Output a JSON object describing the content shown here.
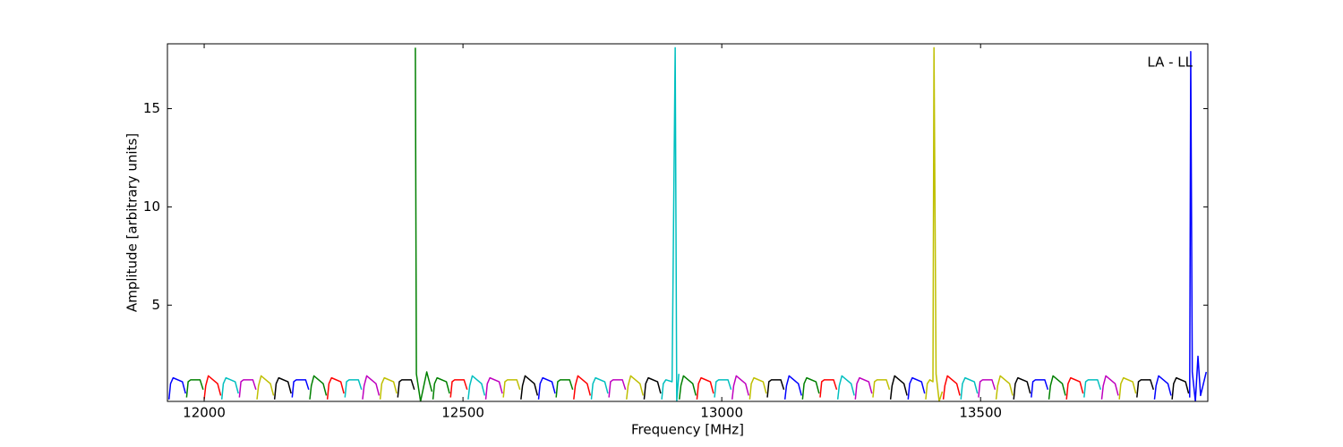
{
  "chart_data": {
    "type": "line",
    "annotation": "LA - LL",
    "x_label": "Frequency [MHz]",
    "y_label": "Amplitude [arbitrary units]",
    "xlim": [
      11929,
      13939
    ],
    "ylim": [
      0.1,
      18.3
    ],
    "xticks": [
      12000,
      12500,
      13000,
      13500
    ],
    "yticks": [
      5,
      10,
      15
    ],
    "series": [
      {
        "color": "#0000ff",
        "x": [
          11932,
          11935,
          11940,
          11958,
          11964
        ],
        "values": [
          0.2,
          1.0,
          1.3,
          1.1,
          0.5
        ]
      },
      {
        "color": "#008000",
        "x": [
          11966,
          11969,
          11974,
          11992,
          11998
        ],
        "values": [
          0.3,
          1.1,
          1.2,
          1.2,
          0.7
        ]
      },
      {
        "color": "#ff0000",
        "x": [
          12000,
          12003,
          12008,
          12026,
          12032
        ],
        "values": [
          0.2,
          0.9,
          1.4,
          1.0,
          0.4
        ]
      },
      {
        "color": "#00bfbf",
        "x": [
          12034,
          12037,
          12042,
          12060,
          12066
        ],
        "values": [
          0.2,
          1.0,
          1.3,
          1.1,
          0.5
        ]
      },
      {
        "color": "#bf00bf",
        "x": [
          12068,
          12071,
          12076,
          12094,
          12100
        ],
        "values": [
          0.3,
          1.1,
          1.2,
          1.2,
          0.7
        ]
      },
      {
        "color": "#bfbf00",
        "x": [
          12102,
          12105,
          12110,
          12128,
          12134
        ],
        "values": [
          0.2,
          0.9,
          1.4,
          1.0,
          0.4
        ]
      },
      {
        "color": "#000000",
        "x": [
          12136,
          12139,
          12144,
          12162,
          12168
        ],
        "values": [
          0.2,
          1.0,
          1.3,
          1.1,
          0.5
        ]
      },
      {
        "color": "#0000ff",
        "x": [
          12170,
          12173,
          12178,
          12196,
          12202
        ],
        "values": [
          0.3,
          1.1,
          1.2,
          1.2,
          0.7
        ]
      },
      {
        "color": "#008000",
        "x": [
          12204,
          12207,
          12212,
          12230,
          12236
        ],
        "values": [
          0.2,
          0.9,
          1.4,
          1.0,
          0.4
        ]
      },
      {
        "color": "#ff0000",
        "x": [
          12238,
          12241,
          12246,
          12264,
          12270
        ],
        "values": [
          0.2,
          1.0,
          1.3,
          1.1,
          0.5
        ]
      },
      {
        "color": "#00bfbf",
        "x": [
          12272,
          12275,
          12280,
          12298,
          12304
        ],
        "values": [
          0.3,
          1.1,
          1.2,
          1.2,
          0.7
        ]
      },
      {
        "color": "#bf00bf",
        "x": [
          12306,
          12309,
          12314,
          12332,
          12338
        ],
        "values": [
          0.2,
          0.9,
          1.4,
          1.0,
          0.4
        ]
      },
      {
        "color": "#bfbf00",
        "x": [
          12340,
          12343,
          12348,
          12366,
          12372
        ],
        "values": [
          0.2,
          1.0,
          1.3,
          1.1,
          0.5
        ]
      },
      {
        "color": "#000000",
        "x": [
          12374,
          12377,
          12382,
          12400,
          12406
        ],
        "values": [
          0.3,
          1.1,
          1.2,
          1.2,
          0.7
        ]
      },
      {
        "color": "#008000",
        "x": [
          12408,
          12410,
          12418,
          12430,
          12440
        ],
        "values": [
          18.1,
          1.5,
          0.1,
          1.6,
          0.6
        ]
      },
      {
        "color": "#008000",
        "x": [
          12442,
          12445,
          12450,
          12468,
          12474
        ],
        "values": [
          0.2,
          1.0,
          1.3,
          1.1,
          0.5
        ]
      },
      {
        "color": "#ff0000",
        "x": [
          12476,
          12479,
          12484,
          12502,
          12508
        ],
        "values": [
          0.3,
          1.1,
          1.2,
          1.2,
          0.7
        ]
      },
      {
        "color": "#00bfbf",
        "x": [
          12510,
          12513,
          12518,
          12536,
          12542
        ],
        "values": [
          0.2,
          0.9,
          1.4,
          1.0,
          0.4
        ]
      },
      {
        "color": "#bf00bf",
        "x": [
          12544,
          12547,
          12552,
          12570,
          12576
        ],
        "values": [
          0.2,
          1.0,
          1.3,
          1.1,
          0.5
        ]
      },
      {
        "color": "#bfbf00",
        "x": [
          12578,
          12581,
          12586,
          12604,
          12610
        ],
        "values": [
          0.3,
          1.1,
          1.2,
          1.2,
          0.7
        ]
      },
      {
        "color": "#000000",
        "x": [
          12612,
          12615,
          12620,
          12638,
          12644
        ],
        "values": [
          0.2,
          0.9,
          1.4,
          1.0,
          0.4
        ]
      },
      {
        "color": "#0000ff",
        "x": [
          12646,
          12649,
          12654,
          12672,
          12678
        ],
        "values": [
          0.2,
          1.0,
          1.3,
          1.1,
          0.5
        ]
      },
      {
        "color": "#008000",
        "x": [
          12680,
          12683,
          12688,
          12706,
          12712
        ],
        "values": [
          0.3,
          1.1,
          1.2,
          1.2,
          0.7
        ]
      },
      {
        "color": "#ff0000",
        "x": [
          12714,
          12717,
          12722,
          12740,
          12746
        ],
        "values": [
          0.2,
          0.9,
          1.4,
          1.0,
          0.4
        ]
      },
      {
        "color": "#00bfbf",
        "x": [
          12748,
          12751,
          12756,
          12774,
          12780
        ],
        "values": [
          0.2,
          1.0,
          1.3,
          1.1,
          0.5
        ]
      },
      {
        "color": "#bf00bf",
        "x": [
          12782,
          12785,
          12790,
          12808,
          12814
        ],
        "values": [
          0.3,
          1.1,
          1.2,
          1.2,
          0.7
        ]
      },
      {
        "color": "#bfbf00",
        "x": [
          12816,
          12819,
          12824,
          12842,
          12848
        ],
        "values": [
          0.2,
          0.9,
          1.4,
          1.0,
          0.4
        ]
      },
      {
        "color": "#000000",
        "x": [
          12850,
          12853,
          12858,
          12876,
          12882
        ],
        "values": [
          0.2,
          1.0,
          1.3,
          1.1,
          0.5
        ]
      },
      {
        "color": "#00bfbf",
        "x": [
          12884,
          12887,
          12892,
          12904,
          12910,
          12913,
          12917
        ],
        "values": [
          0.2,
          1.0,
          1.2,
          1.1,
          18.1,
          0.1,
          1.5
        ]
      },
      {
        "color": "#008000",
        "x": [
          12918,
          12921,
          12926,
          12944,
          12950
        ],
        "values": [
          0.2,
          0.9,
          1.4,
          1.0,
          0.4
        ]
      },
      {
        "color": "#ff0000",
        "x": [
          12952,
          12955,
          12960,
          12978,
          12984
        ],
        "values": [
          0.2,
          1.0,
          1.3,
          1.1,
          0.5
        ]
      },
      {
        "color": "#00bfbf",
        "x": [
          12986,
          12989,
          12994,
          13012,
          13018
        ],
        "values": [
          0.3,
          1.1,
          1.2,
          1.2,
          0.7
        ]
      },
      {
        "color": "#bf00bf",
        "x": [
          13020,
          13023,
          13028,
          13046,
          13052
        ],
        "values": [
          0.2,
          0.9,
          1.4,
          1.0,
          0.4
        ]
      },
      {
        "color": "#bfbf00",
        "x": [
          13054,
          13057,
          13062,
          13080,
          13086
        ],
        "values": [
          0.2,
          1.0,
          1.3,
          1.1,
          0.5
        ]
      },
      {
        "color": "#000000",
        "x": [
          13088,
          13091,
          13096,
          13114,
          13120
        ],
        "values": [
          0.3,
          1.1,
          1.2,
          1.2,
          0.7
        ]
      },
      {
        "color": "#0000ff",
        "x": [
          13122,
          13125,
          13130,
          13148,
          13154
        ],
        "values": [
          0.2,
          0.9,
          1.4,
          1.0,
          0.4
        ]
      },
      {
        "color": "#008000",
        "x": [
          13156,
          13159,
          13164,
          13182,
          13188
        ],
        "values": [
          0.2,
          1.0,
          1.3,
          1.1,
          0.5
        ]
      },
      {
        "color": "#ff0000",
        "x": [
          13190,
          13193,
          13198,
          13216,
          13222
        ],
        "values": [
          0.3,
          1.1,
          1.2,
          1.2,
          0.7
        ]
      },
      {
        "color": "#00bfbf",
        "x": [
          13224,
          13227,
          13232,
          13250,
          13256
        ],
        "values": [
          0.2,
          0.9,
          1.4,
          1.0,
          0.4
        ]
      },
      {
        "color": "#bf00bf",
        "x": [
          13258,
          13261,
          13266,
          13284,
          13290
        ],
        "values": [
          0.2,
          1.0,
          1.3,
          1.1,
          0.5
        ]
      },
      {
        "color": "#bfbf00",
        "x": [
          13292,
          13295,
          13300,
          13318,
          13324
        ],
        "values": [
          0.3,
          1.1,
          1.2,
          1.2,
          0.7
        ]
      },
      {
        "color": "#000000",
        "x": [
          13326,
          13329,
          13334,
          13352,
          13358
        ],
        "values": [
          0.2,
          0.9,
          1.4,
          1.0,
          0.4
        ]
      },
      {
        "color": "#0000ff",
        "x": [
          13360,
          13363,
          13368,
          13386,
          13392
        ],
        "values": [
          0.2,
          1.0,
          1.3,
          1.1,
          0.5
        ]
      },
      {
        "color": "#bfbf00",
        "x": [
          13394,
          13397,
          13402,
          13408,
          13410,
          13414,
          13420,
          13426
        ],
        "values": [
          0.2,
          1.0,
          1.2,
          1.1,
          18.1,
          1.5,
          0.1,
          0.6
        ]
      },
      {
        "color": "#ff0000",
        "x": [
          13428,
          13431,
          13436,
          13454,
          13460
        ],
        "values": [
          0.2,
          0.9,
          1.4,
          1.0,
          0.4
        ]
      },
      {
        "color": "#00bfbf",
        "x": [
          13462,
          13465,
          13470,
          13488,
          13494
        ],
        "values": [
          0.2,
          1.0,
          1.3,
          1.1,
          0.5
        ]
      },
      {
        "color": "#bf00bf",
        "x": [
          13496,
          13499,
          13504,
          13522,
          13528
        ],
        "values": [
          0.3,
          1.1,
          1.2,
          1.2,
          0.7
        ]
      },
      {
        "color": "#bfbf00",
        "x": [
          13530,
          13533,
          13538,
          13556,
          13562
        ],
        "values": [
          0.2,
          0.9,
          1.4,
          1.0,
          0.4
        ]
      },
      {
        "color": "#000000",
        "x": [
          13564,
          13567,
          13572,
          13590,
          13596
        ],
        "values": [
          0.2,
          1.0,
          1.3,
          1.1,
          0.5
        ]
      },
      {
        "color": "#0000ff",
        "x": [
          13598,
          13601,
          13606,
          13624,
          13630
        ],
        "values": [
          0.3,
          1.1,
          1.2,
          1.2,
          0.7
        ]
      },
      {
        "color": "#008000",
        "x": [
          13632,
          13635,
          13640,
          13658,
          13664
        ],
        "values": [
          0.2,
          0.9,
          1.4,
          1.0,
          0.4
        ]
      },
      {
        "color": "#ff0000",
        "x": [
          13666,
          13669,
          13674,
          13692,
          13698
        ],
        "values": [
          0.2,
          1.0,
          1.3,
          1.1,
          0.5
        ]
      },
      {
        "color": "#00bfbf",
        "x": [
          13700,
          13703,
          13708,
          13726,
          13732
        ],
        "values": [
          0.3,
          1.1,
          1.2,
          1.2,
          0.7
        ]
      },
      {
        "color": "#bf00bf",
        "x": [
          13734,
          13737,
          13742,
          13760,
          13766
        ],
        "values": [
          0.2,
          0.9,
          1.4,
          1.0,
          0.4
        ]
      },
      {
        "color": "#bfbf00",
        "x": [
          13768,
          13771,
          13776,
          13794,
          13800
        ],
        "values": [
          0.2,
          1.0,
          1.3,
          1.1,
          0.5
        ]
      },
      {
        "color": "#000000",
        "x": [
          13802,
          13805,
          13810,
          13828,
          13834
        ],
        "values": [
          0.3,
          1.1,
          1.2,
          1.2,
          0.7
        ]
      },
      {
        "color": "#0000ff",
        "x": [
          13836,
          13839,
          13844,
          13862,
          13868
        ],
        "values": [
          0.2,
          0.9,
          1.4,
          1.0,
          0.4
        ]
      },
      {
        "color": "#000000",
        "x": [
          13870,
          13873,
          13878,
          13896,
          13902
        ],
        "values": [
          0.2,
          1.0,
          1.3,
          1.1,
          0.5
        ]
      },
      {
        "color": "#0000ff",
        "x": [
          13904,
          13906,
          13909,
          13915,
          13920,
          13925,
          13936
        ],
        "values": [
          0.3,
          17.9,
          1.6,
          0.1,
          2.4,
          0.4,
          1.6
        ]
      }
    ]
  }
}
